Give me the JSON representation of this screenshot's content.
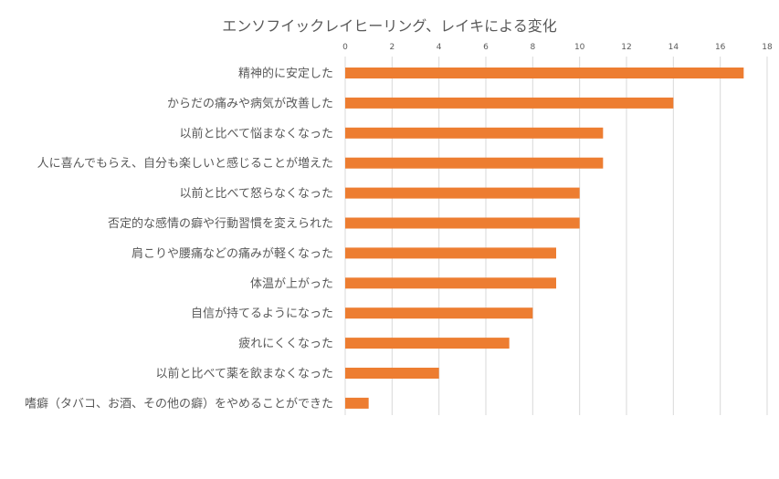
{
  "chart_data": {
    "type": "bar",
    "orientation": "horizontal",
    "title": "エンソフイックレイヒーリング、レイキによる変化",
    "categories": [
      "精神的に安定した",
      "からだの痛みや病気が改善した",
      "以前と比べて悩まなくなった",
      "人に喜んでもらえ、自分も楽しいと感じることが増えた",
      "以前と比べて怒らなくなった",
      "否定的な感情の癖や行動習慣を変えられた",
      "肩こりや腰痛などの痛みが軽くなった",
      "体温が上がった",
      "自信が持てるようになった",
      "疲れにくくなった",
      "以前と比べて薬を飲まなくなった",
      "嗜癖（タバコ、お酒、その他の癖）をやめることができた"
    ],
    "values": [
      17,
      14,
      11,
      11,
      10,
      10,
      9,
      9,
      8,
      7,
      4,
      1
    ],
    "xlim": [
      0,
      18
    ],
    "xticks": [
      "0",
      "2",
      "4",
      "6",
      "8",
      "10",
      "12",
      "14",
      "16",
      "18"
    ],
    "axis_position": "top",
    "grid": true,
    "bar_color": "#ED7D31",
    "grid_color": "#D9D9D9"
  }
}
